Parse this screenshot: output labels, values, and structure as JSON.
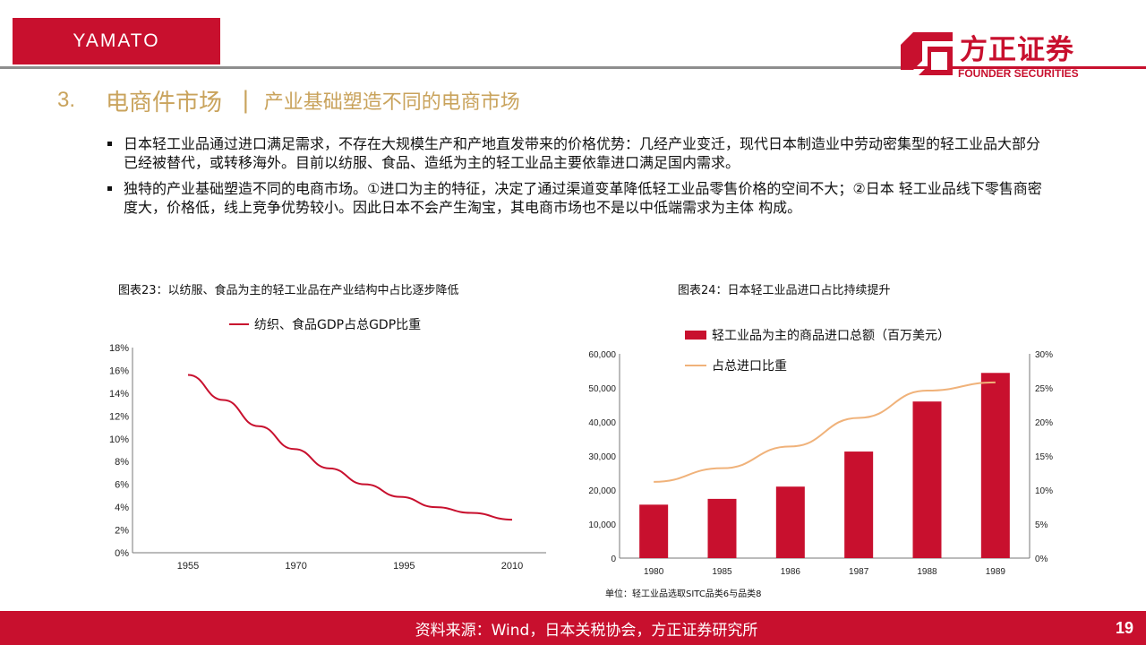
{
  "header": {
    "tag": "YAMATO",
    "brand_cn": "方正证券",
    "brand_en": "FOUNDER SECURITIES",
    "accent_color": "#c8102e"
  },
  "heading": {
    "number": "3.",
    "title": "电商件市场",
    "separator": "|",
    "subtitle": "产业基础塑造不同的电商市场"
  },
  "bullets": [
    "日本轻工业品通过进口满足需求，不存在大规模生产和产地直发带来的价格优势：几经产业变迁，现代日本制造业中劳动密集型的轻工业品大部分已经被替代，或转移海外。目前以纺服、食品、造纸为主的轻工业品主要依靠进口满足国内需求。",
    "独特的产业基础塑造不同的电商市场。①进口为主的特征，决定了通过渠道变革降低轻工业品零售价格的空间不大；②日本 轻工业品线下零售商密度大，价格低，线上竞争优势较小。因此日本不会产生淘宝，其电商市场也不是以中低端需求为主体 构成。"
  ],
  "chart1": {
    "caption": "图表23：以纺服、食品为主的轻工业品在产业结构中占比逐步降低",
    "legend": "纺织、食品GDP占总GDP比重"
  },
  "chart2": {
    "caption": "图表24：日本轻工业品进口占比持续提升",
    "legend_bar": "轻工业品为主的商品进口总额（百万美元）",
    "legend_line": "占总进口比重",
    "note": "单位：轻工业品选取SITC品类6与品类8"
  },
  "footer": {
    "source": "资料来源：Wind，日本关税协会，方正证券研究所",
    "page": "19"
  },
  "chart_data": [
    {
      "type": "line",
      "title": "图表23：以纺服、食品为主的轻工业品在产业结构中占比逐步降低",
      "categories": [
        "1955",
        "1970",
        "1995",
        "2010"
      ],
      "x": [
        1955,
        1961,
        1967,
        1973,
        1979,
        1985,
        1991,
        1997,
        2003,
        2010
      ],
      "series": [
        {
          "name": "纺织、食品GDP占总GDP比重",
          "values": [
            15.6,
            13.4,
            11.1,
            9.1,
            7.4,
            6.0,
            4.9,
            4.0,
            3.5,
            2.9
          ]
        }
      ],
      "y_ticks": [
        "0%",
        "2%",
        "4%",
        "6%",
        "8%",
        "10%",
        "12%",
        "14%",
        "16%",
        "18%"
      ],
      "ylim": [
        0,
        18
      ],
      "color": "#c8102e",
      "grid": false
    },
    {
      "type": "bar",
      "title": "图表24：日本轻工业品进口占比持续提升",
      "categories": [
        "1980",
        "1985",
        "1986",
        "1987",
        "1988",
        "1989"
      ],
      "series": [
        {
          "name": "轻工业品为主的商品进口总额（百万美元）",
          "type": "bar",
          "axis": "left",
          "values": [
            15700,
            17400,
            21000,
            31300,
            46000,
            54400
          ],
          "color": "#c8102e"
        },
        {
          "name": "占总进口比重",
          "type": "line",
          "axis": "right",
          "values": [
            11.2,
            13.2,
            16.4,
            20.6,
            24.6,
            25.8
          ],
          "color": "#f0b27a"
        }
      ],
      "y_left_ticks": [
        "0",
        "10,000",
        "20,000",
        "30,000",
        "40,000",
        "50,000",
        "60,000"
      ],
      "ylim_left": [
        0,
        60000
      ],
      "y_right_ticks": [
        "0%",
        "5%",
        "10%",
        "15%",
        "20%",
        "25%",
        "30%"
      ],
      "ylim_right": [
        0,
        30
      ],
      "grid": false
    }
  ]
}
